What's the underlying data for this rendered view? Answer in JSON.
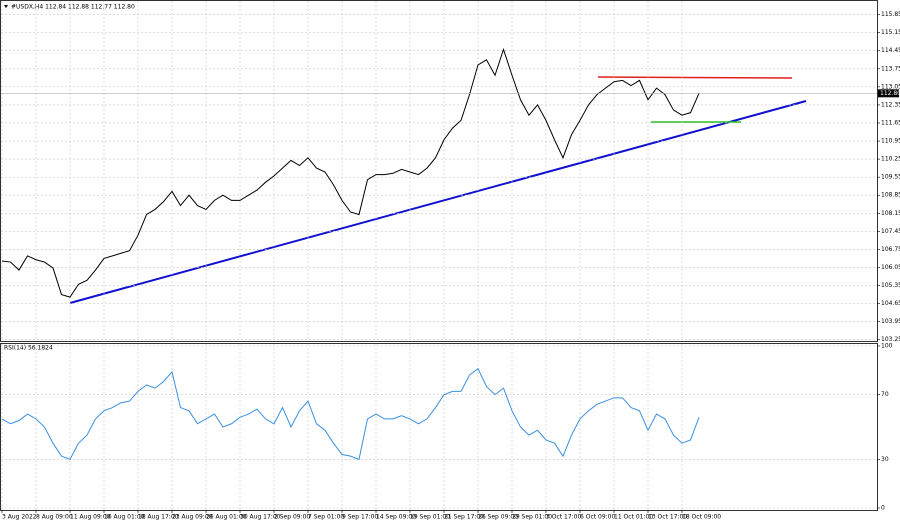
{
  "chart_data": [
    {
      "type": "line",
      "title": "#USDX,H4 112.84 112.88 112.77 112.80",
      "color": "#000000",
      "categories": [
        "3 Aug 2022",
        null,
        null,
        null,
        "8 Aug 09:00",
        null,
        null,
        null,
        "11 Aug 09:00",
        null,
        null,
        null,
        "16 Aug 01:00",
        null,
        null,
        null,
        "18 Aug 17:00",
        null,
        null,
        null,
        "23 Aug 09:00",
        null,
        null,
        null,
        "26 Aug 01:00",
        null,
        null,
        null,
        "30 Aug 17:00",
        null,
        null,
        null,
        "2 Sep 09:00",
        null,
        null,
        null,
        "7 Sep 01:00",
        null,
        null,
        null,
        "9 Sep 17:00",
        null,
        null,
        null,
        "14 Sep 09:00",
        null,
        null,
        null,
        "19 Sep 01:00",
        null,
        null,
        null,
        "21 Sep 17:00",
        null,
        null,
        null,
        "26 Sep 09:00",
        null,
        null,
        null,
        "29 Sep 01:00",
        null,
        null,
        null,
        "3 Oct 17:00",
        null,
        null,
        null,
        "6 Oct 09:00",
        null,
        null,
        null,
        "11 Oct 01:00",
        null,
        null,
        null,
        "13 Oct 17:00",
        null,
        null,
        null,
        "18 Oct 09:00",
        null,
        null
      ],
      "values": [
        106.3,
        106.26,
        105.95,
        106.5,
        106.35,
        106.26,
        106.03,
        105.0,
        104.9,
        105.4,
        105.55,
        105.95,
        106.4,
        106.5,
        106.6,
        106.7,
        107.3,
        108.1,
        108.3,
        108.6,
        109.0,
        108.45,
        108.85,
        108.45,
        108.3,
        108.65,
        108.85,
        108.65,
        108.65,
        108.85,
        109.05,
        109.35,
        109.6,
        109.9,
        110.2,
        110.0,
        110.3,
        109.9,
        109.75,
        109.25,
        108.65,
        108.2,
        108.1,
        109.45,
        109.65,
        109.65,
        109.7,
        109.85,
        109.75,
        109.65,
        109.9,
        110.3,
        111.0,
        111.45,
        111.75,
        112.75,
        113.9,
        114.1,
        113.5,
        114.5,
        113.5,
        112.55,
        111.95,
        112.35,
        111.75,
        111.0,
        110.3,
        111.2,
        111.75,
        112.35,
        112.75,
        113.0,
        113.25,
        113.3,
        113.1,
        113.3,
        112.55,
        113.0,
        112.75,
        112.15,
        111.95,
        112.05,
        112.8
      ],
      "current_price": {
        "value": 112.8,
        "label": "112.80"
      },
      "ylim": [
        103.2,
        116.3
      ],
      "yticks": [
        115.85,
        115.15,
        114.45,
        113.75,
        113.05,
        112.35,
        111.65,
        110.95,
        110.25,
        109.55,
        108.85,
        108.15,
        107.45,
        106.75,
        106.05,
        105.35,
        104.65,
        103.95,
        103.25
      ],
      "grid": true
    },
    {
      "type": "line",
      "title": "RSI(14) 56.1824",
      "color": "#3a8fe0",
      "values": [
        55,
        52,
        54,
        58,
        55,
        50,
        40,
        32,
        30,
        40,
        45,
        55,
        60,
        62,
        65,
        66,
        72,
        76,
        74,
        78,
        84,
        62,
        60,
        52,
        55,
        58,
        50,
        52,
        56,
        58,
        61,
        55,
        52,
        62,
        50,
        60,
        66,
        52,
        48,
        40,
        33,
        32,
        30,
        55,
        58,
        55,
        55,
        57,
        55,
        52,
        55,
        62,
        70,
        72,
        72,
        82,
        86,
        75,
        70,
        74,
        60,
        50,
        45,
        48,
        42,
        40,
        32,
        45,
        55,
        60,
        64,
        66,
        68,
        68,
        62,
        60,
        48,
        58,
        55,
        45,
        40,
        42,
        56
      ],
      "ylim": [
        0,
        100
      ],
      "yticks": [
        100,
        70,
        30,
        0
      ],
      "grid": true
    }
  ]
}
